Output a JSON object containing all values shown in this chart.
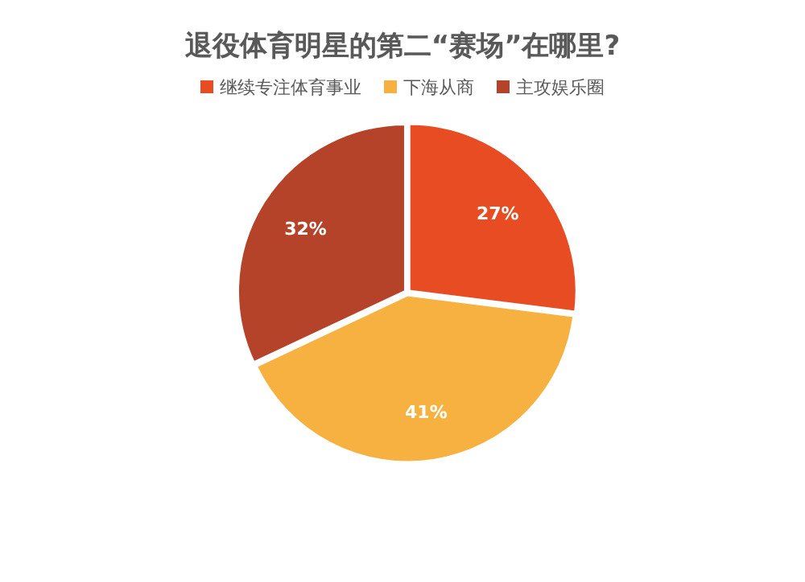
{
  "chart_data": {
    "type": "pie",
    "title": "退役体育明星的第二“赛场”在哪里?",
    "categories": [
      "继续专注体育事业",
      "下海从商",
      "主攻娱乐圈"
    ],
    "values": [
      27,
      41,
      32
    ],
    "colors": [
      "#e84c22",
      "#f6b141",
      "#b5432a"
    ],
    "value_labels": [
      "27%",
      "41%",
      "32%"
    ],
    "legend": "top"
  }
}
